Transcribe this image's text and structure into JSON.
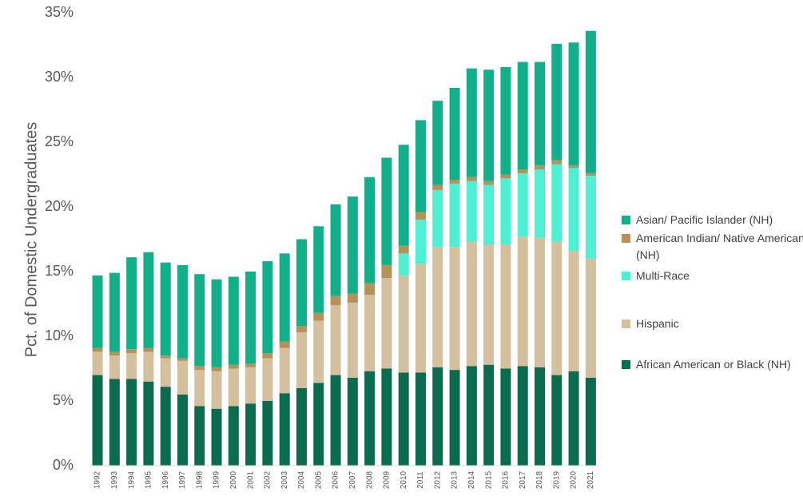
{
  "chart_data": {
    "type": "stacked_bar",
    "ylabel": "Pct. of Domestic Undergraduates",
    "categories": [
      "1992",
      "1993",
      "1994",
      "1995",
      "1996",
      "1997",
      "1998",
      "1999",
      "2000",
      "2001",
      "2002",
      "2003",
      "2004",
      "2005",
      "2006",
      "2007",
      "2008",
      "2009",
      "2010",
      "2011",
      "2012",
      "2013",
      "2014",
      "2015",
      "2016",
      "2017",
      "2018",
      "2019",
      "2020",
      "2021"
    ],
    "ylim": [
      0,
      35
    ],
    "yticks": [
      {
        "value": 0,
        "label": "0%"
      },
      {
        "value": 5,
        "label": "5%"
      },
      {
        "value": 10,
        "label": "10%"
      },
      {
        "value": 15,
        "label": "15%"
      },
      {
        "value": 20,
        "label": "20%"
      },
      {
        "value": 25,
        "label": "25%"
      },
      {
        "value": 30,
        "label": "30%"
      },
      {
        "value": 35,
        "label": "35%"
      }
    ],
    "grid": false,
    "legend": "right",
    "series": [
      {
        "name": "African American or Black (NH)",
        "color": "#0b6b4f",
        "values": [
          7.0,
          6.7,
          6.7,
          6.5,
          6.1,
          5.5,
          4.6,
          4.4,
          4.6,
          4.8,
          5.0,
          5.6,
          6.0,
          6.4,
          7.0,
          6.8,
          7.3,
          7.5,
          7.2,
          7.2,
          7.6,
          7.4,
          7.7,
          7.8,
          7.5,
          7.7,
          7.6,
          7.0,
          7.3,
          6.8
        ]
      },
      {
        "name": "Hispanic",
        "color": "#d4bf9f",
        "values": [
          1.8,
          1.8,
          2.0,
          2.3,
          2.2,
          2.6,
          2.8,
          2.9,
          2.9,
          2.8,
          3.3,
          3.5,
          4.3,
          4.8,
          5.4,
          5.8,
          5.9,
          7.0,
          7.5,
          8.4,
          9.3,
          9.5,
          9.6,
          9.3,
          9.6,
          10.0,
          10.0,
          10.3,
          9.3,
          9.2
        ]
      },
      {
        "name": "Multi-Race",
        "color": "#4df0d2",
        "values": [
          0,
          0,
          0,
          0,
          0,
          0,
          0,
          0,
          0,
          0,
          0,
          0,
          0,
          0,
          0,
          0,
          0,
          0,
          1.7,
          3.4,
          4.4,
          4.9,
          4.7,
          4.6,
          5.1,
          4.9,
          5.3,
          6.0,
          6.4,
          6.4
        ]
      },
      {
        "name": "American Indian/ Native American (NH)",
        "color": "#b5925a",
        "values": [
          0.3,
          0.3,
          0.3,
          0.3,
          0.2,
          0.2,
          0.3,
          0.3,
          0.3,
          0.3,
          0.4,
          0.5,
          0.5,
          0.6,
          0.7,
          0.7,
          0.9,
          1.0,
          0.6,
          0.6,
          0.4,
          0.3,
          0.3,
          0.3,
          0.3,
          0.3,
          0.3,
          0.3,
          0.2,
          0.2
        ]
      },
      {
        "name": "Asian/ Pacific Islander (NH)",
        "color": "#12b08a",
        "values": [
          5.6,
          6.1,
          7.1,
          7.4,
          7.2,
          7.2,
          7.1,
          6.8,
          6.8,
          7.1,
          7.1,
          6.8,
          6.7,
          6.7,
          7.1,
          7.5,
          8.2,
          8.3,
          7.8,
          7.1,
          6.5,
          7.1,
          8.4,
          8.6,
          8.3,
          8.3,
          8.0,
          9.0,
          9.5,
          11.0
        ]
      }
    ]
  }
}
